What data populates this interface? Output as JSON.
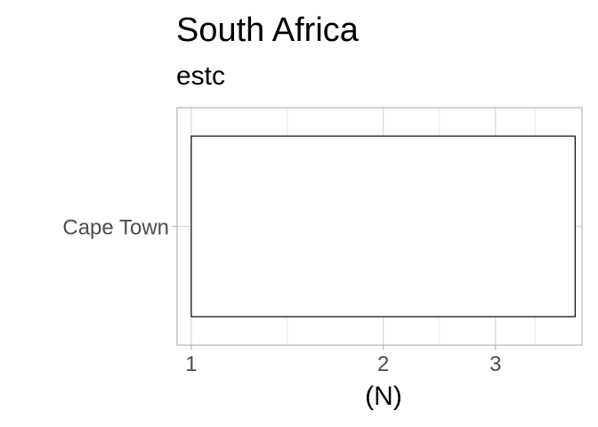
{
  "chart_data": {
    "type": "bar",
    "title": "South Africa",
    "subtitle": "estc",
    "xlabel": "(N)",
    "ylabel": "",
    "orientation": "horizontal",
    "x_scale": "log",
    "xlim": [
      0.95,
      4.1
    ],
    "x_ticks": [
      1,
      2,
      3
    ],
    "x_tick_labels": [
      "1",
      "2",
      "3"
    ],
    "categories": [
      "Cape Town"
    ],
    "series": [
      {
        "values": [
          4
        ]
      }
    ],
    "bar_fill": "#ffffff",
    "bar_stroke": "#000000",
    "panel_border_color": "#b3b3b3",
    "grid_major_color": "#d9d9d9",
    "grid_minor_color": "#ebebeb",
    "grid": true,
    "legend": "none"
  }
}
